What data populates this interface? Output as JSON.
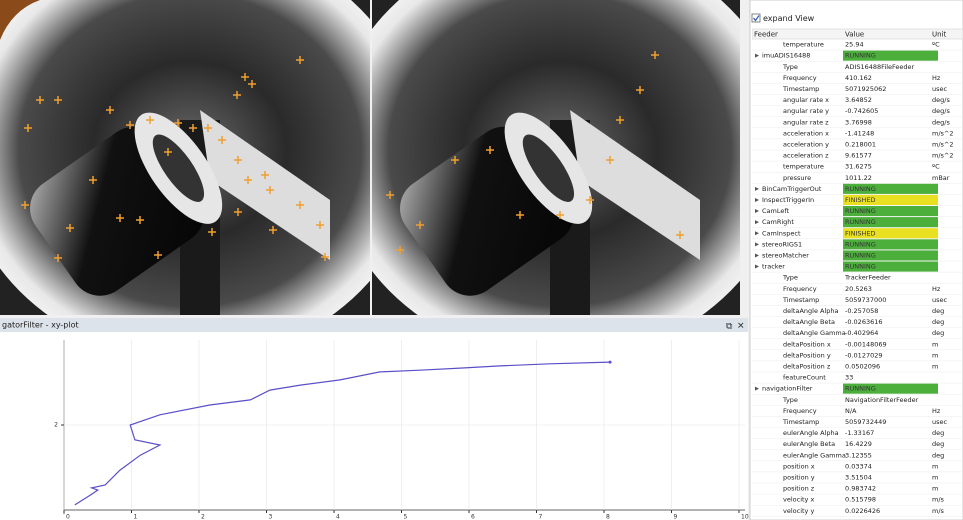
{
  "panel": {
    "checkbox_label": "expand View",
    "headers": [
      "Feeder",
      "Value",
      "Unit"
    ],
    "rows": [
      {
        "name": "temperature",
        "value": "25.94",
        "unit": "ºC"
      },
      {
        "name": "imuADIS16488",
        "value": "RUNNING",
        "group": true,
        "highlight": "#4caf3c"
      },
      {
        "name": "Type",
        "value": "ADIS16488FileFeeder"
      },
      {
        "name": "Frequency",
        "value": "410.162",
        "unit": "Hz"
      },
      {
        "name": "Timestamp",
        "value": "5071925062",
        "unit": "usec"
      },
      {
        "name": "angular rate x",
        "value": "3.64852",
        "unit": "deg/s"
      },
      {
        "name": "angular rate y",
        "value": "-0.742605",
        "unit": "deg/s"
      },
      {
        "name": "angular rate z",
        "value": "3.76998",
        "unit": "deg/s"
      },
      {
        "name": "acceleration x",
        "value": "-1.41248",
        "unit": "m/s^2"
      },
      {
        "name": "acceleration y",
        "value": "0.218001",
        "unit": "m/s^2"
      },
      {
        "name": "acceleration z",
        "value": "9.61577",
        "unit": "m/s^2"
      },
      {
        "name": "temperature",
        "value": "31.6275",
        "unit": "ºC"
      },
      {
        "name": "pressure",
        "value": "1011.22",
        "unit": "mBar"
      },
      {
        "name": "BinCamTriggerOut",
        "value": "RUNNING",
        "group": true,
        "highlight": "#4caf3c"
      },
      {
        "name": "InspectTriggerIn",
        "value": "FINISHED",
        "group": true,
        "highlight": "#e8e020"
      },
      {
        "name": "CamLeft",
        "value": "RUNNING",
        "group": true,
        "highlight": "#4caf3c"
      },
      {
        "name": "CamRight",
        "value": "RUNNING",
        "group": true,
        "highlight": "#4caf3c"
      },
      {
        "name": "CamInspect",
        "value": "FINISHED",
        "group": true,
        "highlight": "#e8e020"
      },
      {
        "name": "stereoRIGS1",
        "value": "RUNNING",
        "group": true,
        "highlight": "#4caf3c"
      },
      {
        "name": "stereoMatcher",
        "value": "RUNNING",
        "group": true,
        "highlight": "#4caf3c"
      },
      {
        "name": "tracker",
        "value": "RUNNING",
        "group": true,
        "highlight": "#4caf3c"
      },
      {
        "name": "Type",
        "value": "TrackerFeeder"
      },
      {
        "name": "Frequency",
        "value": "20.5263",
        "unit": "Hz"
      },
      {
        "name": "Timestamp",
        "value": "5059737000",
        "unit": "usec"
      },
      {
        "name": "deltaAngle Alpha",
        "value": "-0.257058",
        "unit": "deg"
      },
      {
        "name": "deltaAngle Beta",
        "value": "-0.0263616",
        "unit": "deg"
      },
      {
        "name": "deltaAngle Gamma",
        "value": "-0.402964",
        "unit": "deg"
      },
      {
        "name": "deltaPosition x",
        "value": "-0.00148069",
        "unit": "m"
      },
      {
        "name": "deltaPosition y",
        "value": "-0.0127029",
        "unit": "m"
      },
      {
        "name": "deltaPosition z",
        "value": "0.0502096",
        "unit": "m"
      },
      {
        "name": "featureCount",
        "value": "33"
      },
      {
        "name": "navigationFilter",
        "value": "RUNNING",
        "group": true,
        "highlight": "#4caf3c"
      },
      {
        "name": "Type",
        "value": "NavigationFilterFeeder"
      },
      {
        "name": "Frequency",
        "value": "N/A",
        "unit": "Hz"
      },
      {
        "name": "Timestamp",
        "value": "5059732449",
        "unit": "usec"
      },
      {
        "name": "eulerAngle Alpha",
        "value": "-1.33167",
        "unit": "deg"
      },
      {
        "name": "eulerAngle Beta",
        "value": "16.4229",
        "unit": "deg"
      },
      {
        "name": "eulerAngle Gamma",
        "value": "3.12355",
        "unit": "deg"
      },
      {
        "name": "position x",
        "value": "0.03374",
        "unit": "m"
      },
      {
        "name": "position y",
        "value": "3.51504",
        "unit": "m"
      },
      {
        "name": "position z",
        "value": "0.983742",
        "unit": "m"
      },
      {
        "name": "velocity x",
        "value": "0.515798",
        "unit": "m/s"
      },
      {
        "name": "velocity y",
        "value": "0.0226426",
        "unit": "m/s"
      }
    ]
  },
  "plot": {
    "title": "gatorFilter - xy-plot",
    "color": "#5a4fc8",
    "xlim": [
      0,
      10.2
    ],
    "ylim": [
      0,
      4
    ],
    "xticks": [
      0,
      1,
      2,
      3,
      4,
      5,
      6,
      7,
      8,
      9,
      10
    ],
    "yticks": [
      2
    ],
    "x": [
      0.16,
      0.39,
      0.5,
      0.41,
      0.61,
      0.83,
      1.13,
      1.42,
      1.05,
      0.98,
      1.42,
      2.16,
      2.76,
      3.05,
      3.5,
      4.09,
      4.68,
      5.27,
      5.87,
      6.46,
      7.2,
      8.09
    ],
    "y": [
      0.12,
      0.35,
      0.47,
      0.52,
      0.59,
      0.94,
      1.29,
      1.53,
      1.65,
      2.0,
      2.24,
      2.47,
      2.59,
      2.82,
      2.94,
      3.06,
      3.25,
      3.29,
      3.34,
      3.39,
      3.44,
      3.48
    ]
  }
}
